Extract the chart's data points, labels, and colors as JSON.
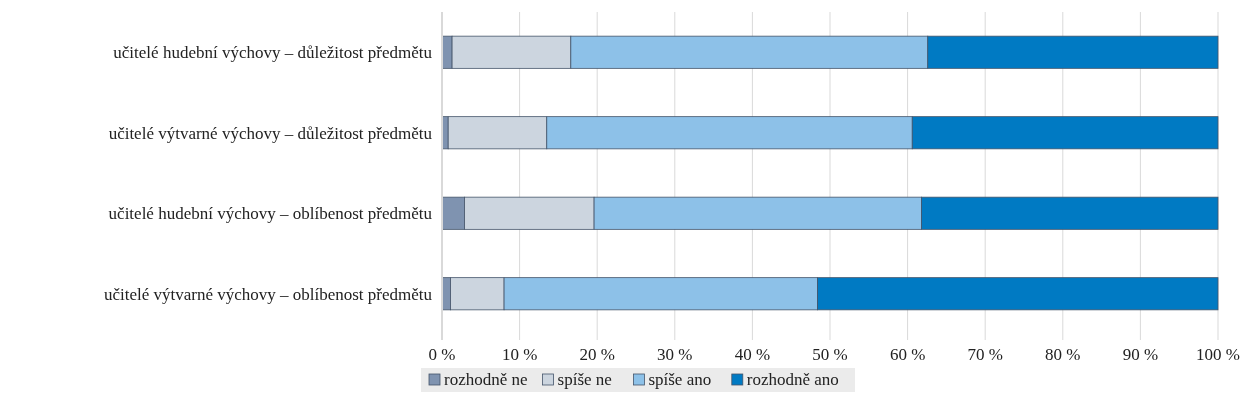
{
  "chart_data": {
    "type": "bar",
    "orientation": "horizontal",
    "stacked": true,
    "categories": [
      "učitelé hudební výchovy – důležitost předmětu",
      "učitelé výtvarné výchovy – důležitost předmětu",
      "učitelé hudební výchovy – oblíbenost předmětu",
      "učitelé výtvarné výchovy – oblíbenost předmětu"
    ],
    "series": [
      {
        "name": "rozhodně ne",
        "color": "#7f93b0",
        "values": [
          1.3,
          0.8,
          2.9,
          1.1
        ]
      },
      {
        "name": "spíše ne",
        "color": "#ccd5df",
        "values": [
          15.3,
          12.7,
          16.7,
          6.9
        ]
      },
      {
        "name": "spíše ano",
        "color": "#8dc1e8",
        "values": [
          46.0,
          47.1,
          42.2,
          40.4
        ]
      },
      {
        "name": "rozhodně ano",
        "color": "#007ac3",
        "values": [
          37.4,
          39.4,
          38.2,
          51.6
        ]
      }
    ],
    "xlim": [
      0,
      100
    ],
    "xticks": [
      {
        "value": 0,
        "label": "0 %"
      },
      {
        "value": 10,
        "label": "10 %"
      },
      {
        "value": 20,
        "label": "20 %"
      },
      {
        "value": 30,
        "label": "30 %"
      },
      {
        "value": 40,
        "label": "40 %"
      },
      {
        "value": 50,
        "label": "50 %"
      },
      {
        "value": 60,
        "label": "60 %"
      },
      {
        "value": 70,
        "label": "70 %"
      },
      {
        "value": 80,
        "label": "80 %"
      },
      {
        "value": 90,
        "label": "90 %"
      },
      {
        "value": 100,
        "label": "100 %"
      }
    ],
    "grid": "x",
    "legend": "bottom"
  }
}
